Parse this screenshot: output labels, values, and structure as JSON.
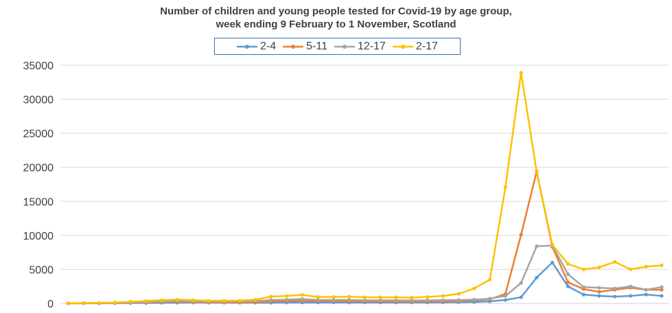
{
  "chart_data": {
    "type": "line",
    "title_line1": "Number of children and young people tested for Covid-19 by age group,",
    "title_line2": "week ending 9 February to 1 November, Scotland",
    "xlabel": "",
    "ylabel": "",
    "ylim": [
      0,
      35000
    ],
    "yticks": [
      0,
      5000,
      10000,
      15000,
      20000,
      25000,
      30000,
      35000
    ],
    "ytick_labels": [
      "0",
      "5000",
      "10000",
      "15000",
      "20000",
      "25000",
      "30000",
      "35000"
    ],
    "grid": true,
    "legend_position": "top-center",
    "point_count": 39,
    "series": [
      {
        "name": "2-4",
        "color": "#5b9bd5",
        "values": [
          5,
          10,
          15,
          20,
          50,
          60,
          80,
          100,
          120,
          100,
          100,
          100,
          100,
          100,
          120,
          130,
          130,
          140,
          120,
          130,
          130,
          130,
          140,
          140,
          150,
          170,
          200,
          300,
          500,
          900,
          3800,
          6000,
          2500,
          1300,
          1100,
          1000,
          1100,
          1300,
          1100
        ]
      },
      {
        "name": "5-11",
        "color": "#ed7d31",
        "values": [
          10,
          20,
          30,
          50,
          100,
          150,
          220,
          250,
          200,
          150,
          150,
          150,
          180,
          300,
          350,
          400,
          350,
          350,
          300,
          300,
          280,
          280,
          280,
          300,
          320,
          350,
          450,
          600,
          1400,
          10100,
          19400,
          8300,
          3100,
          2100,
          1700,
          2000,
          2300,
          2000,
          2000
        ]
      },
      {
        "name": "12-17",
        "color": "#a5a5a5",
        "values": [
          20,
          30,
          50,
          70,
          120,
          200,
          300,
          350,
          300,
          250,
          280,
          300,
          350,
          500,
          550,
          650,
          500,
          500,
          520,
          450,
          460,
          450,
          430,
          450,
          480,
          500,
          550,
          700,
          1100,
          3000,
          8400,
          8500,
          4300,
          2400,
          2300,
          2200,
          2500,
          2000,
          2400
        ]
      },
      {
        "name": "2-17",
        "color": "#ffc000",
        "values": [
          30,
          60,
          80,
          130,
          250,
          350,
          480,
          550,
          480,
          380,
          400,
          400,
          550,
          1000,
          1100,
          1250,
          950,
          950,
          1000,
          900,
          900,
          900,
          850,
          950,
          1100,
          1400,
          2200,
          3500,
          17100,
          33900,
          19300,
          8600,
          5800,
          5000,
          5300,
          6100,
          5000,
          5400,
          5600
        ]
      }
    ]
  }
}
